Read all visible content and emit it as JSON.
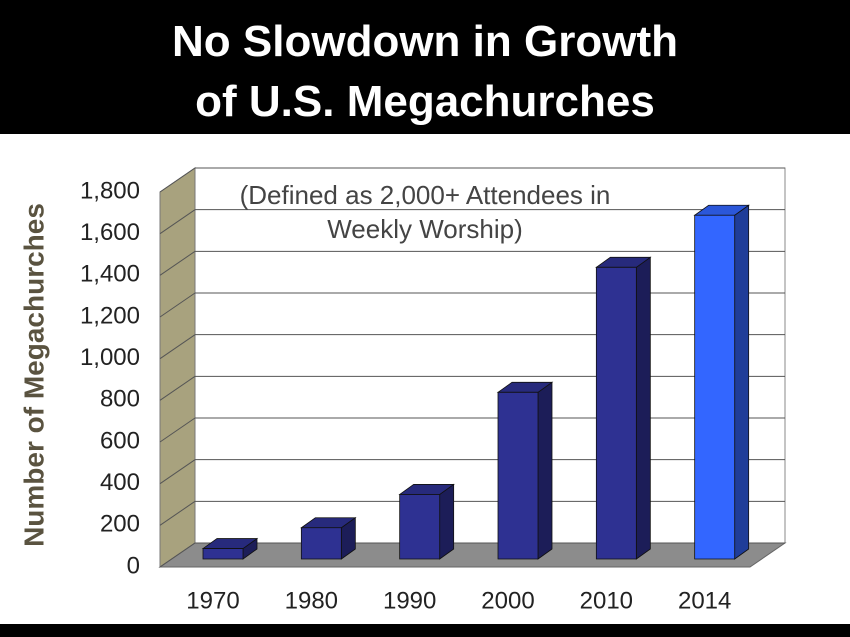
{
  "chart_data": {
    "type": "bar3d",
    "title": "No Slowdown in Growth of U.S. Megachurches",
    "annotation": "(Defined as 2,000+ Attendees in Weekly Worship)",
    "y_label": "Number of Megachurches",
    "categories": [
      "1970",
      "1980",
      "1990",
      "2000",
      "2010",
      "2014"
    ],
    "values": [
      50,
      150,
      310,
      800,
      1400,
      1650
    ],
    "colors": [
      "#2e3192",
      "#2e3192",
      "#2e3192",
      "#2e3192",
      "#2e3192",
      "#3366ff"
    ],
    "ylim": [
      0,
      1800
    ],
    "yticks": [
      0,
      200,
      400,
      600,
      800,
      {
        "value": 1000,
        "label": "1,000"
      },
      {
        "value": 1200,
        "label": "1,200"
      },
      {
        "value": 1400,
        "label": "1,400"
      },
      {
        "value": 1600,
        "label": "1,600"
      },
      {
        "value": 1800,
        "label": "1,800"
      }
    ],
    "grid": true
  }
}
